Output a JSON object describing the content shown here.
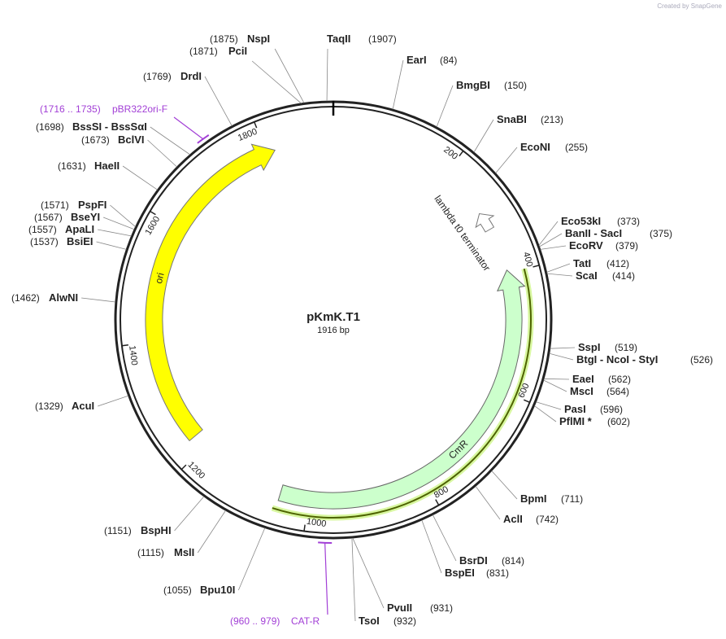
{
  "watermark": "Created by SnapGene",
  "map": {
    "name": "pKmK.T1",
    "length": {
      "value": 1916,
      "label": "1916 bp"
    }
  },
  "scale_ticks": [
    200,
    400,
    600,
    800,
    1000,
    1200,
    1400,
    1600,
    1800
  ],
  "features": [
    {
      "name": "ori"
    },
    {
      "name": "CmR"
    },
    {
      "name": "lambda t0 terminator"
    }
  ],
  "primers": [
    {
      "name": "pBR322ori-F",
      "start": 1716,
      "end": 1735,
      "label": "(1716 .. 1735)"
    },
    {
      "name": "CAT-R",
      "start": 960,
      "end": 979,
      "label": "(960 .. 979)"
    }
  ],
  "enzymes": [
    {
      "name": "TaqII",
      "site": {
        "value": 1907,
        "label": "(1907)"
      }
    },
    {
      "name": "EarI",
      "site": {
        "value": 84,
        "label": "(84)"
      }
    },
    {
      "name": "BmgBI",
      "site": {
        "value": 150,
        "label": "(150)"
      }
    },
    {
      "name": "SnaBI",
      "site": {
        "value": 213,
        "label": "(213)"
      }
    },
    {
      "name": "EcoNI",
      "site": {
        "value": 255,
        "label": "(255)"
      }
    },
    {
      "name": "Eco53kI",
      "site": {
        "value": 373,
        "label": "(373)"
      }
    },
    {
      "name": "BanII - SacI",
      "site": {
        "value": 375,
        "label": "(375)"
      }
    },
    {
      "name": "EcoRV",
      "site": {
        "value": 379,
        "label": "(379)"
      }
    },
    {
      "name": "TatI",
      "site": {
        "value": 412,
        "label": "(412)"
      }
    },
    {
      "name": "ScaI",
      "site": {
        "value": 414,
        "label": "(414)"
      }
    },
    {
      "name": "SspI",
      "site": {
        "value": 519,
        "label": "(519)"
      }
    },
    {
      "name": "BtgI - NcoI - StyI",
      "site": {
        "value": 526,
        "label": "(526)"
      }
    },
    {
      "name": "EaeI",
      "site": {
        "value": 562,
        "label": "(562)"
      }
    },
    {
      "name": "MscI",
      "site": {
        "value": 564,
        "label": "(564)"
      }
    },
    {
      "name": "PasI",
      "site": {
        "value": 596,
        "label": "(596)"
      }
    },
    {
      "name": "PflMI *",
      "site": {
        "value": 602,
        "label": "(602)"
      }
    },
    {
      "name": "BpmI",
      "site": {
        "value": 711,
        "label": "(711)"
      }
    },
    {
      "name": "AclI",
      "site": {
        "value": 742,
        "label": "(742)"
      }
    },
    {
      "name": "BsrDI",
      "site": {
        "value": 814,
        "label": "(814)"
      }
    },
    {
      "name": "BspEI",
      "site": {
        "value": 831,
        "label": "(831)"
      }
    },
    {
      "name": "PvuII",
      "site": {
        "value": 931,
        "label": "(931)"
      }
    },
    {
      "name": "TsoI",
      "site": {
        "value": 932,
        "label": "(932)"
      }
    },
    {
      "name": "Bpu10I",
      "site": {
        "value": 1055,
        "label": "(1055)"
      }
    },
    {
      "name": "MslI",
      "site": {
        "value": 1115,
        "label": "(1115)"
      }
    },
    {
      "name": "BspHI",
      "site": {
        "value": 1151,
        "label": "(1151)"
      }
    },
    {
      "name": "AcuI",
      "site": {
        "value": 1329,
        "label": "(1329)"
      }
    },
    {
      "name": "AlwNI",
      "site": {
        "value": 1462,
        "label": "(1462)"
      }
    },
    {
      "name": "BsiEI",
      "site": {
        "value": 1537,
        "label": "(1537)"
      }
    },
    {
      "name": "ApaLI",
      "site": {
        "value": 1557,
        "label": "(1557)"
      }
    },
    {
      "name": "BseYI",
      "site": {
        "value": 1567,
        "label": "(1567)"
      }
    },
    {
      "name": "PspFI",
      "site": {
        "value": 1571,
        "label": "(1571)"
      }
    },
    {
      "name": "HaeII",
      "site": {
        "value": 1631,
        "label": "(1631)"
      }
    },
    {
      "name": "BclVI",
      "site": {
        "value": 1673,
        "label": "(1673)"
      }
    },
    {
      "name": "BssSI - BssSαI",
      "site": {
        "value": 1698,
        "label": "(1698)"
      }
    },
    {
      "name": "DrdI",
      "site": {
        "value": 1769,
        "label": "(1769)"
      }
    },
    {
      "name": "PciI",
      "site": {
        "value": 1871,
        "label": "(1871)"
      }
    },
    {
      "name": "NspI",
      "site": {
        "value": 1875,
        "label": "(1875)"
      }
    }
  ]
}
